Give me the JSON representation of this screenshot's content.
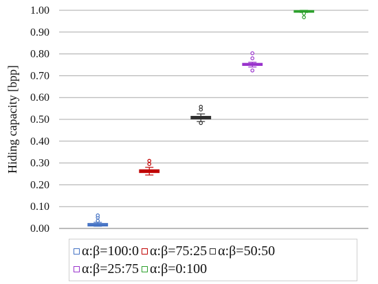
{
  "chart_data": {
    "type": "box",
    "ylabel": "Hiding capacity [bpp]",
    "ylim": [
      0.0,
      1.0
    ],
    "yticks": [
      "0.00",
      "0.10",
      "0.20",
      "0.30",
      "0.40",
      "0.50",
      "0.60",
      "0.70",
      "0.80",
      "0.90",
      "1.00"
    ],
    "grid": true,
    "legend_position": "bottom",
    "series": [
      {
        "name": "α:β=100:0",
        "color": "#4472c4",
        "median": 0.015,
        "q1": 0.012,
        "q3": 0.022,
        "whisker_low": 0.01,
        "whisker_high": 0.028,
        "outliers": [
          0.035,
          0.05,
          0.06
        ]
      },
      {
        "name": "α:β=75:25",
        "color": "#c00000",
        "median": 0.262,
        "q1": 0.257,
        "q3": 0.268,
        "whisker_low": 0.245,
        "whisker_high": 0.28,
        "outliers": [
          0.295,
          0.31
        ]
      },
      {
        "name": "α:β=50:50",
        "color": "#303030",
        "median": 0.508,
        "q1": 0.503,
        "q3": 0.513,
        "whisker_low": 0.49,
        "whisker_high": 0.525,
        "outliers": [
          0.483,
          0.545,
          0.558
        ]
      },
      {
        "name": "α:β=25:75",
        "color": "#9933cc",
        "median": 0.752,
        "q1": 0.748,
        "q3": 0.756,
        "whisker_low": 0.74,
        "whisker_high": 0.762,
        "outliers": [
          0.724,
          0.78,
          0.803
        ]
      },
      {
        "name": "α:β=0:100",
        "color": "#2ca02c",
        "median": 0.996,
        "q1": 0.994,
        "q3": 0.998,
        "whisker_low": 0.99,
        "whisker_high": 1.0,
        "outliers": [
          0.985,
          0.968
        ]
      }
    ]
  }
}
